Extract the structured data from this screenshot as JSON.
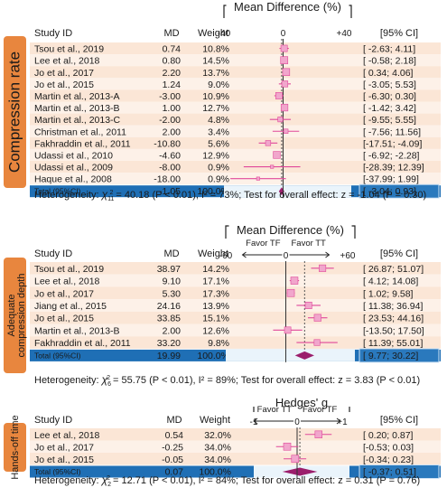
{
  "panels": [
    {
      "side_label": "Compression rate",
      "metric_title": "Mean Difference (%)",
      "favor_left": "",
      "favor_right": "",
      "axis_ticks": [
        {
          "value": -40,
          "label": "-40"
        },
        {
          "value": 0,
          "label": "0"
        },
        {
          "value": 40,
          "label": "+40"
        }
      ],
      "columns": {
        "study": "Study ID",
        "md": "MD",
        "weight": "Weight",
        "ci": "[95% CI]"
      },
      "rows": [
        {
          "study": "Tsou et al., 2019",
          "md": 0.74,
          "weight": "10.8%",
          "ci_low": -2.63,
          "ci_high": 4.11,
          "ci_text": "[ -2.63; 4.11]"
        },
        {
          "study": "Lee et al., 2018",
          "md": 0.8,
          "weight": "14.5%",
          "ci_low": -0.58,
          "ci_high": 2.18,
          "ci_text": "[ -0.58; 2.18]"
        },
        {
          "study": "Jo et al., 2017",
          "md": 2.2,
          "weight": "13.7%",
          "ci_low": 0.34,
          "ci_high": 4.06,
          "ci_text": "[ 0.34; 4.06]"
        },
        {
          "study": "Jo et al., 2015",
          "md": 1.24,
          "weight": "9.0%",
          "ci_low": -3.05,
          "ci_high": 5.53,
          "ci_text": "[ -3.05; 5.53]"
        },
        {
          "study": "Martin et al., 2013-A",
          "md": -3.0,
          "weight": "10.9%",
          "ci_low": -6.3,
          "ci_high": 0.3,
          "ci_text": "[ -6.30; 0.30]"
        },
        {
          "study": "Martin et al., 2013-B",
          "md": 1.0,
          "weight": "12.7%",
          "ci_low": -1.42,
          "ci_high": 3.42,
          "ci_text": "[ -1.42; 3.42]"
        },
        {
          "study": "Martin et al., 2013-C",
          "md": -2.0,
          "weight": "4.8%",
          "ci_low": -9.55,
          "ci_high": 5.55,
          "ci_text": "[ -9.55; 5.55]"
        },
        {
          "study": "Christman et al., 2011",
          "md": 2.0,
          "weight": "3.4%",
          "ci_low": -7.56,
          "ci_high": 11.56,
          "ci_text": "[ -7.56; 11.56]"
        },
        {
          "study": "Fakhraddin et al., 2011",
          "md": -10.8,
          "weight": "5.6%",
          "ci_low": -17.51,
          "ci_high": -4.09,
          "ci_text": "[-17.51; -4.09]"
        },
        {
          "study": "Udassi et al., 2010",
          "md": -4.6,
          "weight": "12.9%",
          "ci_low": -6.92,
          "ci_high": -2.28,
          "ci_text": "[ -6.92; -2.28]"
        },
        {
          "study": "Udassi et al., 2009",
          "md": -8.0,
          "weight": "0.9%",
          "ci_low": -28.39,
          "ci_high": 12.39,
          "ci_text": "[-28.39; 12.39]"
        },
        {
          "study": "Haque et al., 2008",
          "md": -18.0,
          "weight": "0.9%",
          "ci_low": -37.99,
          "ci_high": 1.99,
          "ci_text": "[-37.99; 1.99]"
        }
      ],
      "total": {
        "label": "Total (95%CI)",
        "md": -1.05,
        "md_text": "-1.05",
        "weight": "100.0%",
        "ci_low": -3.04,
        "ci_high": 0.93,
        "ci_text": "[ -3.04; 0.93]"
      },
      "heterogeneity_prefix": "Heterogeneity: ",
      "chi_sub": "11",
      "heterogeneity_rest": " = 40.18 (P < 0.01), I² = 73%; Test for overall effect: z = -1.04 (P = 0.30)"
    },
    {
      "side_label_lines": [
        "Adequate",
        "compression depth"
      ],
      "metric_title": "Mean Difference (%)",
      "favor_left": "Favor TF",
      "favor_right": "Favor TT",
      "axis_ticks": [
        {
          "value": -60,
          "label": "-60"
        },
        {
          "value": 0,
          "label": "0"
        },
        {
          "value": 60,
          "label": "+60"
        }
      ],
      "columns": {
        "study": "Study ID",
        "md": "MD",
        "weight": "Weight",
        "ci": "[95% CI]"
      },
      "rows": [
        {
          "study": "Tsou et al., 2019",
          "md": 38.97,
          "weight": "14.2%",
          "ci_low": 26.87,
          "ci_high": 51.07,
          "ci_text": "[ 26.87; 51.07]"
        },
        {
          "study": "Lee et al., 2018",
          "md": 9.1,
          "weight": "17.1%",
          "ci_low": 4.12,
          "ci_high": 14.08,
          "ci_text": "[ 4.12; 14.08]"
        },
        {
          "study": "Jo et al., 2017",
          "md": 5.3,
          "weight": "17.3%",
          "ci_low": 1.02,
          "ci_high": 9.58,
          "ci_text": "[ 1.02; 9.58]"
        },
        {
          "study": "Jiang et al., 2015",
          "md": 24.16,
          "weight": "13.9%",
          "ci_low": 11.38,
          "ci_high": 36.94,
          "ci_text": "[ 11.38; 36.94]"
        },
        {
          "study": "Jo et al., 2015",
          "md": 33.85,
          "weight": "15.1%",
          "ci_low": 23.53,
          "ci_high": 44.16,
          "ci_text": "[ 23.53; 44.16]"
        },
        {
          "study": "Martin et al., 2013-B",
          "md": 2.0,
          "weight": "12.6%",
          "ci_low": -13.5,
          "ci_high": 17.5,
          "ci_text": "[-13.50; 17.50]"
        },
        {
          "study": "Fakhraddin et al., 2011",
          "md": 33.2,
          "weight": "9.8%",
          "ci_low": 11.39,
          "ci_high": 55.01,
          "ci_text": "[ 11.39; 55.01]"
        }
      ],
      "total": {
        "label": "Total (95%CI)",
        "md": 19.99,
        "md_text": "19.99",
        "weight": "100.0%",
        "ci_low": 9.77,
        "ci_high": 30.22,
        "ci_text": "[ 9.77; 30.22]"
      },
      "heterogeneity_prefix": "Heterogeneity: ",
      "chi_sub": "6",
      "heterogeneity_rest": " = 55.75 (P < 0.01), I² = 89%; Test for overall effect: z = 3.83 (P < 0.01)"
    },
    {
      "side_label": "Hands-off time",
      "metric_title": "Hedges' g",
      "favor_left": "Favor TT",
      "favor_right": "Favor TF",
      "axis_ticks": [
        {
          "value": -1,
          "label": "-1"
        },
        {
          "value": 0,
          "label": "0"
        },
        {
          "value": 1,
          "label": "+1"
        }
      ],
      "columns": {
        "study": "Study ID",
        "md": "MD",
        "weight": "Weight",
        "ci": "[95% CI]"
      },
      "rows": [
        {
          "study": "Lee et al., 2018",
          "md": 0.54,
          "weight": "32.0%",
          "ci_low": 0.2,
          "ci_high": 0.87,
          "ci_text": "[ 0.20; 0.87]"
        },
        {
          "study": "Jo et al., 2017",
          "md": -0.25,
          "weight": "34.0%",
          "ci_low": -0.53,
          "ci_high": 0.03,
          "ci_text": "[-0.53; 0.03]"
        },
        {
          "study": "Jo et al., 2015",
          "md": -0.05,
          "weight": "34.0%",
          "ci_low": -0.34,
          "ci_high": 0.23,
          "ci_text": "[-0.34; 0.23]"
        }
      ],
      "total": {
        "label": "Total (95%CI)",
        "md": 0.07,
        "md_text": "0.07",
        "weight": "100.0%",
        "ci_low": -0.37,
        "ci_high": 0.51,
        "ci_text": "[ -0.37; 0.51]"
      },
      "heterogeneity_prefix": "Heterogeneity: ",
      "chi_sub": "2",
      "heterogeneity_rest": " = 12.71 (P < 0.01), I² = 84%; Test for overall effect: z = 0.31 (P = 0.76)"
    }
  ],
  "chart_data": [
    {
      "type": "forest",
      "title": "Mean Difference (%)",
      "side_label": "Compression rate",
      "xlim": [
        -40,
        40
      ],
      "categories": [
        "Tsou et al., 2019",
        "Lee et al., 2018",
        "Jo et al., 2017",
        "Jo et al., 2015",
        "Martin et al., 2013-A",
        "Martin et al., 2013-B",
        "Martin et al., 2013-C",
        "Christman et al., 2011",
        "Fakhraddin et al., 2011",
        "Udassi et al., 2010",
        "Udassi et al., 2009",
        "Haque et al., 2008"
      ],
      "values": [
        0.74,
        0.8,
        2.2,
        1.24,
        -3.0,
        1.0,
        -2.0,
        2.0,
        -10.8,
        -4.6,
        -8.0,
        -18.0
      ],
      "ci_low": [
        -2.63,
        -0.58,
        0.34,
        -3.05,
        -6.3,
        -1.42,
        -9.55,
        -7.56,
        -17.51,
        -6.92,
        -28.39,
        -37.99
      ],
      "ci_high": [
        4.11,
        2.18,
        4.06,
        5.53,
        0.3,
        3.42,
        5.55,
        11.56,
        -4.09,
        -2.28,
        12.39,
        1.99
      ],
      "weights": [
        10.8,
        14.5,
        13.7,
        9.0,
        10.9,
        12.7,
        4.8,
        3.4,
        5.6,
        12.9,
        0.9,
        0.9
      ],
      "pooled": {
        "value": -1.05,
        "ci": [
          -3.04,
          0.93
        ]
      }
    },
    {
      "type": "forest",
      "title": "Mean Difference (%)",
      "side_label": "Adequate compression depth",
      "xlim": [
        -60,
        60
      ],
      "categories": [
        "Tsou et al., 2019",
        "Lee et al., 2018",
        "Jo et al., 2017",
        "Jiang et al., 2015",
        "Jo et al., 2015",
        "Martin et al., 2013-B",
        "Fakhraddin et al., 2011"
      ],
      "values": [
        38.97,
        9.1,
        5.3,
        24.16,
        33.85,
        2.0,
        33.2
      ],
      "ci_low": [
        26.87,
        4.12,
        1.02,
        11.38,
        23.53,
        -13.5,
        11.39
      ],
      "ci_high": [
        51.07,
        14.08,
        9.58,
        36.94,
        44.16,
        17.5,
        55.01
      ],
      "weights": [
        14.2,
        17.1,
        17.3,
        13.9,
        15.1,
        12.6,
        9.8
      ],
      "pooled": {
        "value": 19.99,
        "ci": [
          9.77,
          30.22
        ]
      }
    },
    {
      "type": "forest",
      "title": "Hedges' g",
      "side_label": "Hands-off time",
      "xlim": [
        -1,
        1
      ],
      "categories": [
        "Lee et al., 2018",
        "Jo et al., 2017",
        "Jo et al., 2015"
      ],
      "values": [
        0.54,
        -0.25,
        -0.05
      ],
      "ci_low": [
        0.2,
        -0.53,
        -0.34
      ],
      "ci_high": [
        0.87,
        0.03,
        0.23
      ],
      "weights": [
        32.0,
        34.0,
        34.0
      ],
      "pooled": {
        "value": 0.07,
        "ci": [
          -0.37,
          0.51
        ]
      }
    }
  ],
  "colors": {
    "side_tab": "#e8863e",
    "row_band_1": "#fbe6d6",
    "row_band_2": "#fdf1e8",
    "total_bar": "#1f6fb5",
    "total_ci_box": "#2a79bd",
    "marker": "#e0489a",
    "marker_fill": "#f1a6cc",
    "diamond": "#9b1e6c"
  }
}
